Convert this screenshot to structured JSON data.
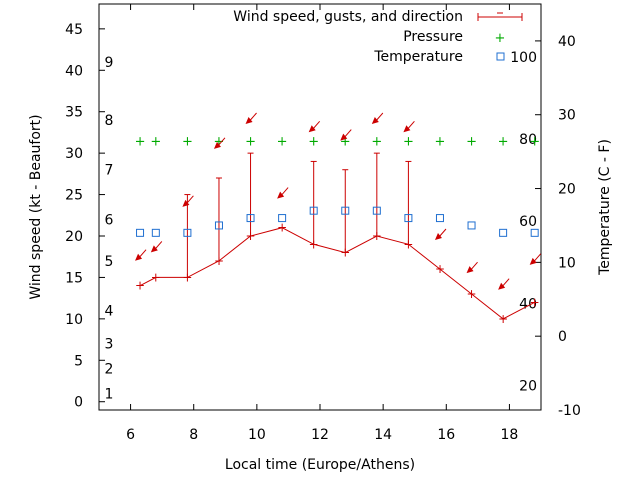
{
  "chart_data": {
    "type": "line",
    "xlabel": "Local time (Europe/Athens)",
    "ylabel_left": "Wind speed (kt - Beaufort)",
    "ylabel_right": "Temperature (C - F)",
    "xlim": [
      5,
      19
    ],
    "ylim_left": [
      -1,
      48
    ],
    "ylim_right": [
      -10,
      45
    ],
    "x_ticks": [
      6,
      8,
      10,
      12,
      14,
      16,
      18
    ],
    "y_left_ticks": [
      0,
      5,
      10,
      15,
      20,
      25,
      30,
      35,
      40,
      45
    ],
    "y_right_ticks": [
      -10,
      0,
      10,
      20,
      30,
      40
    ],
    "beaufort_labels": [
      {
        "label": "1",
        "y": 1
      },
      {
        "label": "2",
        "y": 4
      },
      {
        "label": "3",
        "y": 7
      },
      {
        "label": "4",
        "y": 11
      },
      {
        "label": "5",
        "y": 17
      },
      {
        "label": "6",
        "y": 22
      },
      {
        "label": "7",
        "y": 28
      },
      {
        "label": "8",
        "y": 34
      },
      {
        "label": "9",
        "y": 41
      }
    ],
    "fahrenheit_labels": [
      {
        "label": "20",
        "t": -6.7
      },
      {
        "label": "40",
        "t": 4.4
      },
      {
        "label": "60",
        "t": 15.6
      },
      {
        "label": "80",
        "t": 26.7
      },
      {
        "label": "100",
        "t": 37.8
      }
    ],
    "legend": {
      "position": "top-right",
      "entries": [
        "Wind speed, gusts, and direction",
        "Pressure",
        "Temperature"
      ]
    },
    "series": [
      {
        "name": "Wind speed, gusts, and direction",
        "color": "#cc0000",
        "x": [
          6.3,
          6.8,
          7.8,
          8.8,
          9.8,
          10.8,
          11.8,
          12.8,
          13.8,
          14.8,
          15.8,
          16.8,
          17.8,
          18.8
        ],
        "values": [
          14,
          15,
          15,
          17,
          20,
          21,
          19,
          18,
          20,
          19,
          16,
          13,
          10,
          12
        ],
        "gusts": [
          null,
          null,
          25,
          27,
          30,
          null,
          29,
          28,
          30,
          29,
          null,
          null,
          null,
          null
        ]
      },
      {
        "name": "Pressure",
        "color": "#00aa00",
        "x": [
          6.3,
          6.8,
          7.8,
          8.8,
          9.8,
          10.8,
          11.8,
          12.8,
          13.8,
          14.8,
          15.8,
          16.8,
          17.8,
          18.8
        ],
        "values": [
          26.5,
          26.5,
          26.5,
          26.5,
          26.5,
          26.5,
          26.5,
          26.5,
          26.5,
          26.5,
          26.5,
          26.5,
          26.5,
          26.5
        ]
      },
      {
        "name": "Temperature",
        "color": "#1f6fd0",
        "x": [
          6.3,
          6.8,
          7.8,
          8.8,
          9.8,
          10.8,
          11.8,
          12.8,
          13.8,
          14.8,
          15.8,
          16.8,
          17.8,
          18.8
        ],
        "values": [
          14,
          14,
          14,
          15,
          16,
          16,
          17,
          17,
          17,
          16,
          16,
          15,
          14,
          14
        ]
      }
    ],
    "direction_arrows": [
      {
        "x": 6.3,
        "y": 17.5
      },
      {
        "x": 6.8,
        "y": 18.5
      },
      {
        "x": 7.8,
        "y": 24
      },
      {
        "x": 8.8,
        "y": 31
      },
      {
        "x": 9.8,
        "y": 34
      },
      {
        "x": 10.8,
        "y": 25
      },
      {
        "x": 11.8,
        "y": 33
      },
      {
        "x": 12.8,
        "y": 32
      },
      {
        "x": 13.8,
        "y": 34
      },
      {
        "x": 14.8,
        "y": 33
      },
      {
        "x": 15.8,
        "y": 20
      },
      {
        "x": 16.8,
        "y": 16
      },
      {
        "x": 17.8,
        "y": 14
      },
      {
        "x": 18.8,
        "y": 17
      }
    ]
  }
}
